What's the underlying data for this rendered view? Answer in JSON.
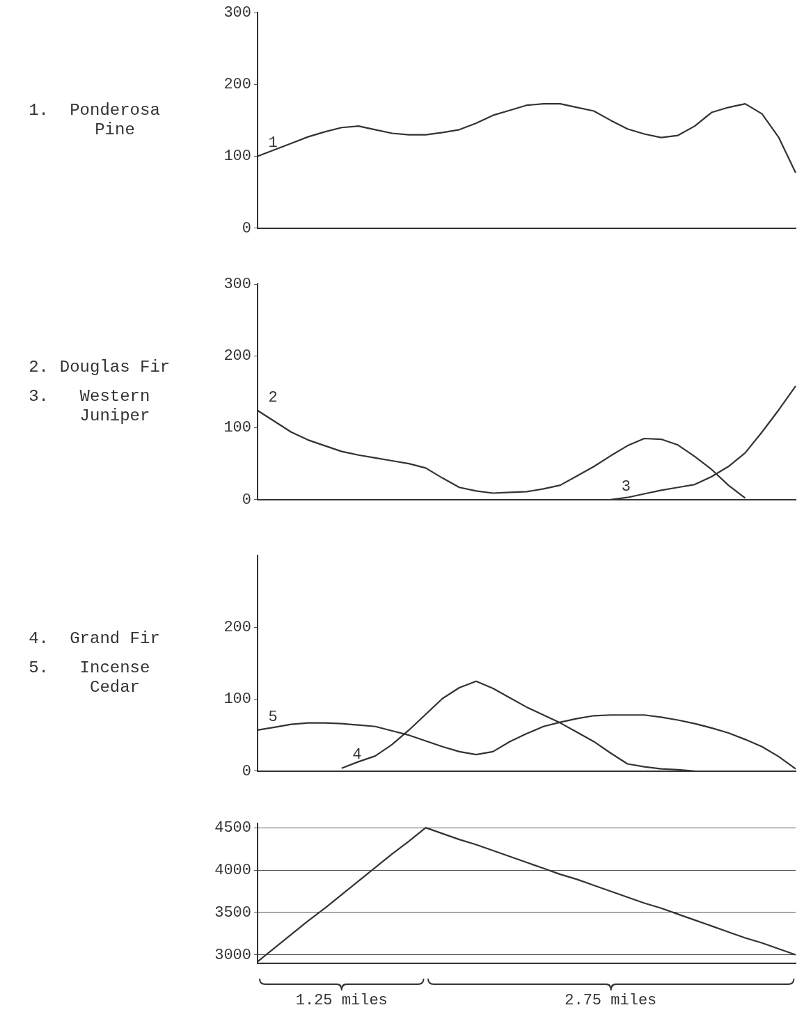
{
  "chart_data": [
    {
      "type": "line",
      "ylabel": "1. Ponderosa Pine",
      "categories": [
        null,
        null,
        null,
        null,
        null,
        null,
        null,
        null,
        null,
        null,
        null,
        null,
        null,
        null,
        null,
        null,
        null,
        null,
        null,
        null,
        null,
        null,
        null,
        null,
        null,
        null,
        null,
        null,
        null,
        null,
        null,
        null,
        null
      ],
      "ylim": [
        0,
        300
      ],
      "yticks": [
        0,
        100,
        200,
        300
      ],
      "tick_labels": "y",
      "grid": false,
      "marker": "none",
      "series": [
        {
          "name": "1",
          "color": "#333333",
          "values": [
            100,
            109,
            118,
            127,
            134,
            140,
            142,
            137,
            132,
            130,
            130,
            133,
            137,
            146,
            157,
            164,
            171,
            173,
            173,
            168,
            163,
            150,
            138,
            131,
            126,
            129,
            142,
            161,
            168,
            173,
            159,
            126,
            77
          ]
        }
      ]
    },
    {
      "type": "line",
      "ylabel": "2. Douglas Fir\n3. Western Juniper",
      "categories": [
        null,
        null,
        null,
        null,
        null,
        null,
        null,
        null,
        null,
        null,
        null,
        null,
        null,
        null,
        null,
        null,
        null,
        null,
        null,
        null,
        null,
        null,
        null,
        null,
        null,
        null,
        null,
        null,
        null,
        null,
        null,
        null,
        null
      ],
      "ylim": [
        0,
        300
      ],
      "yticks": [
        0,
        100,
        200,
        300
      ],
      "tick_labels": "y",
      "grid": false,
      "marker": "none",
      "series": [
        {
          "name": "2",
          "color": "#333333",
          "values": [
            124,
            109,
            94,
            83,
            75,
            67,
            62,
            58,
            54,
            50,
            44,
            30,
            17,
            12,
            9,
            10,
            11,
            15,
            20,
            33,
            46,
            61,
            75,
            85,
            84,
            76,
            60,
            42,
            20,
            2,
            null,
            null,
            null
          ]
        },
        {
          "name": "3",
          "color": "#333333",
          "values": [
            null,
            null,
            null,
            null,
            null,
            null,
            null,
            null,
            null,
            null,
            null,
            null,
            null,
            null,
            null,
            null,
            null,
            null,
            null,
            null,
            null,
            0,
            3,
            8,
            13,
            17,
            21,
            32,
            46,
            65,
            94,
            125,
            158
          ]
        }
      ]
    },
    {
      "type": "line",
      "ylabel": "4. Grand Fir\n5. Incense Cedar",
      "categories": [
        null,
        null,
        null,
        null,
        null,
        null,
        null,
        null,
        null,
        null,
        null,
        null,
        null,
        null,
        null,
        null,
        null,
        null,
        null,
        null,
        null,
        null,
        null,
        null,
        null,
        null,
        null,
        null,
        null,
        null,
        null,
        null,
        null
      ],
      "ylim": [
        0,
        300
      ],
      "yticks": [
        0,
        100,
        200
      ],
      "tick_labels": "y",
      "grid": false,
      "marker": "none",
      "series": [
        {
          "name": "4",
          "color": "#333333",
          "values": [
            null,
            null,
            null,
            null,
            null,
            4,
            13,
            21,
            37,
            57,
            79,
            101,
            116,
            125,
            115,
            102,
            89,
            78,
            67,
            54,
            41,
            25,
            10,
            6,
            3,
            2,
            0,
            null,
            null,
            null,
            null,
            null,
            null
          ]
        },
        {
          "name": "5",
          "color": "#333333",
          "values": [
            57,
            61,
            65,
            67,
            67,
            66,
            64,
            62,
            56,
            50,
            42,
            34,
            27,
            23,
            27,
            41,
            52,
            62,
            68,
            73,
            77,
            78,
            78,
            78,
            75,
            71,
            66,
            60,
            53,
            44,
            34,
            20,
            3
          ]
        }
      ]
    },
    {
      "type": "line",
      "categories": [
        null,
        null,
        null,
        null,
        null,
        null,
        null,
        null,
        null,
        null,
        null,
        null,
        null,
        null,
        null,
        null,
        null,
        null,
        null,
        null,
        null,
        null,
        null,
        null,
        null,
        null,
        null,
        null,
        null,
        null,
        null,
        null,
        null
      ],
      "ylim": [
        2900,
        4550
      ],
      "yticks": [
        3000,
        3500,
        4000,
        4500
      ],
      "tick_labels": "y",
      "grid": "y",
      "marker": "none",
      "annotations": [
        "1.25 miles",
        "2.75 miles"
      ],
      "series": [
        {
          "color": "#333333",
          "values": [
            2920,
            3080,
            3240,
            3400,
            3550,
            3710,
            3870,
            4030,
            4190,
            4340,
            4500,
            4430,
            4360,
            4300,
            4230,
            4160,
            4090,
            4020,
            3950,
            3890,
            3820,
            3750,
            3680,
            3610,
            3550,
            3480,
            3410,
            3340,
            3270,
            3200,
            3140,
            3070,
            3000
          ]
        }
      ]
    }
  ]
}
